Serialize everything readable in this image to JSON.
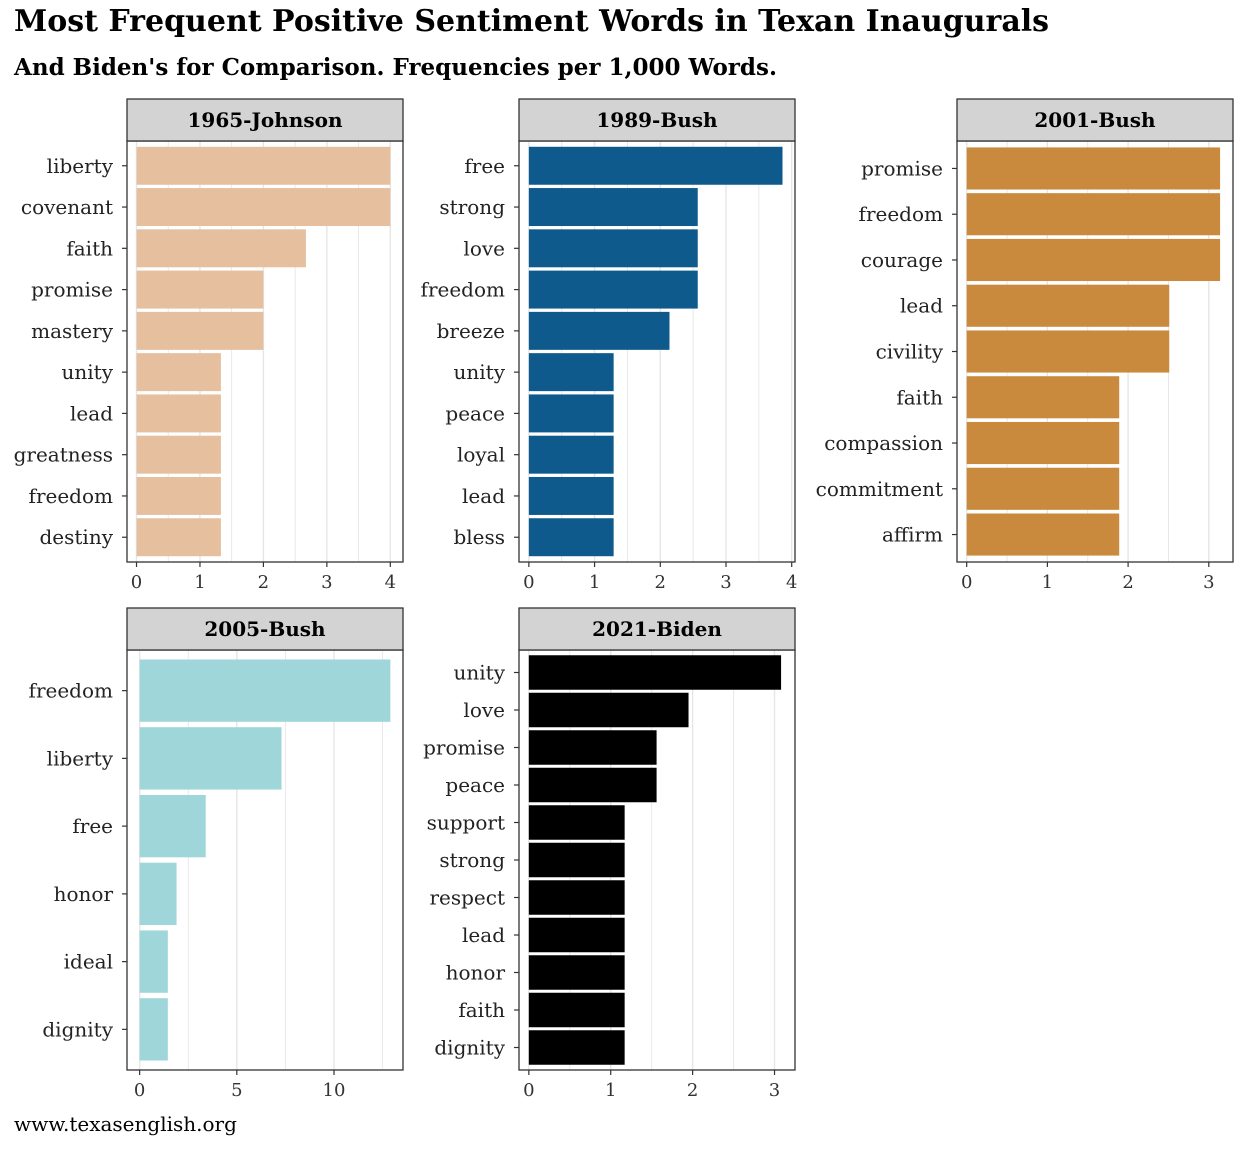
{
  "title": "Most Frequent Positive Sentiment Words in Texan Inaugurals",
  "subtitle": "And Biden's for Comparison. Frequencies per 1,000 Words.",
  "caption": "www.texasenglish.org",
  "chart_data": [
    {
      "type": "bar",
      "panel": "1965-Johnson",
      "orientation": "horizontal",
      "color": "#E6BF9F",
      "categories": [
        "liberty",
        "covenant",
        "faith",
        "promise",
        "mastery",
        "unity",
        "lead",
        "greatness",
        "freedom",
        "destiny"
      ],
      "values": [
        4.0,
        4.0,
        2.67,
        2.0,
        2.0,
        1.33,
        1.33,
        1.33,
        1.33,
        1.33
      ],
      "xlim": [
        -0.15,
        4.2
      ],
      "xticks": [
        0,
        1,
        2,
        3,
        4
      ]
    },
    {
      "type": "bar",
      "panel": "1989-Bush",
      "orientation": "horizontal",
      "color": "#0F5A8C",
      "categories": [
        "free",
        "strong",
        "love",
        "freedom",
        "breeze",
        "unity",
        "peace",
        "loyal",
        "lead",
        "bless"
      ],
      "values": [
        3.86,
        2.57,
        2.57,
        2.57,
        2.14,
        1.29,
        1.29,
        1.29,
        1.29,
        1.29
      ],
      "xlim": [
        -0.15,
        4.05
      ],
      "xticks": [
        0,
        1,
        2,
        3,
        4
      ]
    },
    {
      "type": "bar",
      "panel": "2001-Bush",
      "orientation": "horizontal",
      "color": "#C98A3E",
      "categories": [
        "promise",
        "freedom",
        "courage",
        "lead",
        "civility",
        "faith",
        "compassion",
        "commitment",
        "affirm"
      ],
      "values": [
        3.14,
        3.14,
        3.14,
        2.51,
        2.51,
        1.89,
        1.89,
        1.89,
        1.89
      ],
      "xlim": [
        -0.12,
        3.3
      ],
      "xticks": [
        0,
        1,
        2,
        3
      ]
    },
    {
      "type": "bar",
      "panel": "2005-Bush",
      "orientation": "horizontal",
      "color": "#9ED6D9",
      "categories": [
        "freedom",
        "liberty",
        "free",
        "honor",
        "ideal",
        "dignity"
      ],
      "values": [
        12.9,
        7.3,
        3.4,
        1.9,
        1.45,
        1.45
      ],
      "xlim": [
        -0.65,
        13.55
      ],
      "xticks": [
        0,
        5,
        10
      ]
    },
    {
      "type": "bar",
      "panel": "2021-Biden",
      "orientation": "horizontal",
      "color": "#000000",
      "categories": [
        "unity",
        "love",
        "promise",
        "peace",
        "support",
        "strong",
        "respect",
        "lead",
        "honor",
        "faith",
        "dignity"
      ],
      "values": [
        3.08,
        1.95,
        1.56,
        1.56,
        1.17,
        1.17,
        1.17,
        1.17,
        1.17,
        1.17,
        1.17
      ],
      "xlim": [
        -0.12,
        3.25
      ],
      "xticks": [
        0,
        1,
        2,
        3
      ]
    }
  ]
}
